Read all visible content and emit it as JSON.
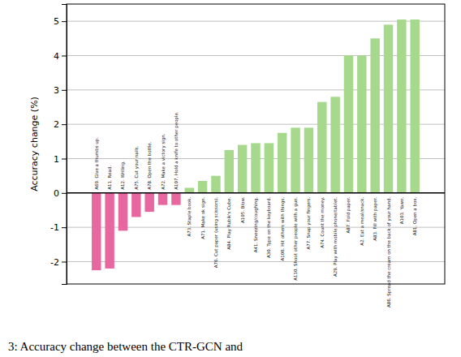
{
  "chart_data": {
    "type": "bar",
    "y_label": "Accuracy change (%)",
    "annotations": [
      "3: Accuracy change between the CTR-GCN and"
    ],
    "categories": [
      "A69. Give a thumbs up.",
      "A11. Read.",
      "A12. Writing.",
      "A75. Cut your nails.",
      "A78. Open the bottle.",
      "A72. Make a victory sign.",
      "A107. Hold a knife to other people.",
      "A73. Staple book.",
      "A71. Make ok sign.",
      "A76. Cut paper (using scissors).",
      "A84. Play Rubik's Cube.",
      "A105. Blow.",
      "A41. Sneezing/coughing.",
      "A30. Type on the keyboard.",
      "A106. Hit others with things.",
      "A110. Shoot other people with a gun.",
      "A77. Snap your fingers.",
      "A74. Count the money.",
      "A29. Play with mobile phone/tablet.",
      "A87. Fold paper.",
      "A2. Eat a meal/snack.",
      "A83. Fill with paper.",
      "A86. Spread the cream on the back of your hand.",
      "A103. Yawn.",
      "A81. Open a box."
    ],
    "values": [
      -2.25,
      -2.2,
      -1.1,
      -0.7,
      -0.55,
      -0.35,
      -0.35,
      0.15,
      0.35,
      0.5,
      1.25,
      1.4,
      1.45,
      1.45,
      1.75,
      1.9,
      1.9,
      2.65,
      2.8,
      4.0,
      4.0,
      4.5,
      4.9,
      5.05,
      5.05
    ],
    "colors": [
      "#e8679e",
      "#e8679e",
      "#e8679e",
      "#e8679e",
      "#e8679e",
      "#e8679e",
      "#e8679e",
      "#a6d98c",
      "#a6d98c",
      "#a6d98c",
      "#a6d98c",
      "#a6d98c",
      "#a6d98c",
      "#a6d98c",
      "#a6d98c",
      "#a6d98c",
      "#a6d98c",
      "#a6d98c",
      "#a6d98c",
      "#a6d98c",
      "#a6d98c",
      "#a6d98c",
      "#a6d98c",
      "#a6d98c",
      "#a6d98c"
    ],
    "ylim": [
      -2.65,
      5.5
    ],
    "yticks": [
      -2,
      -1,
      0,
      1,
      2,
      3,
      4,
      5
    ],
    "grid": true,
    "tick_labels": "y"
  }
}
